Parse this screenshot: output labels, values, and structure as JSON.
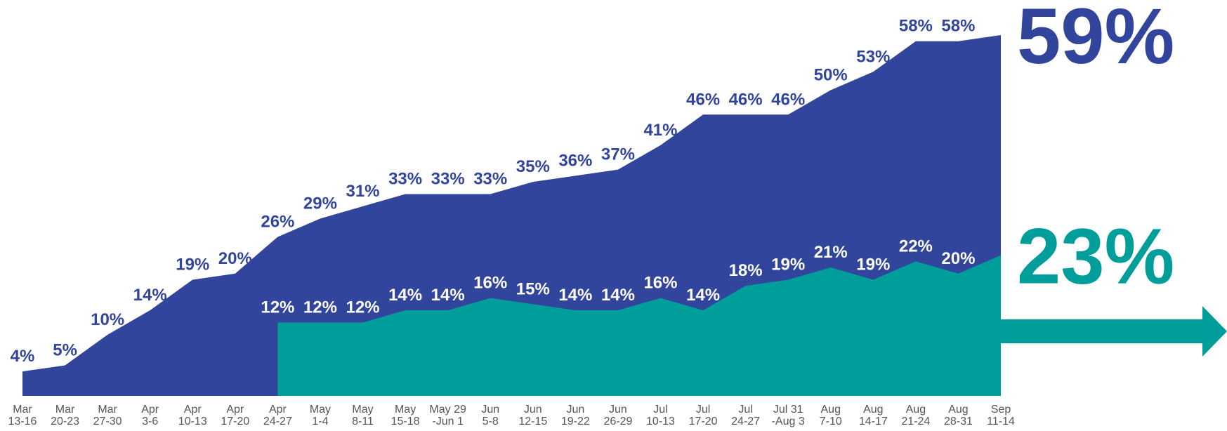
{
  "chart_data": {
    "type": "area",
    "categories": [
      "Mar\n13-16",
      "Mar\n20-23",
      "Mar\n27-30",
      "Apr\n3-6",
      "Apr\n10-13",
      "Apr\n17-20",
      "Apr\n24-27",
      "May\n1-4",
      "May\n8-11",
      "May\n15-18",
      "May 29\n-Jun 1",
      "Jun\n5-8",
      "Jun\n12-15",
      "Jun\n19-22",
      "Jun\n26-29",
      "Jul\n10-13",
      "Jul\n17-20",
      "Jul\n24-27",
      "Jul 31\n-Aug 3",
      "Aug\n7-10",
      "Aug\n14-17",
      "Aug\n21-24",
      "Aug\n28-31",
      "Sep\n11-14"
    ],
    "series": [
      {
        "color": "#32459c",
        "values": [
          4,
          5,
          10,
          14,
          19,
          20,
          26,
          29,
          31,
          33,
          33,
          33,
          35,
          36,
          37,
          41,
          46,
          46,
          46,
          50,
          53,
          58,
          58,
          59
        ],
        "value_labels": [
          "4%",
          "5%",
          "10%",
          "14%",
          "19%",
          "20%",
          "26%",
          "29%",
          "31%",
          "33%",
          "33%",
          "33%",
          "35%",
          "36%",
          "37%",
          "41%",
          "46%",
          "46%",
          "46%",
          "50%",
          "53%",
          "58%",
          "58%",
          "59%"
        ]
      },
      {
        "color": "#009e9a",
        "values": [
          null,
          null,
          null,
          null,
          null,
          null,
          12,
          12,
          12,
          14,
          14,
          16,
          15,
          14,
          14,
          16,
          14,
          18,
          19,
          21,
          19,
          22,
          20,
          23
        ],
        "value_labels": [
          null,
          null,
          null,
          null,
          null,
          null,
          "12%",
          "12%",
          "12%",
          "14%",
          "14%",
          "16%",
          "15%",
          "14%",
          "14%",
          "16%",
          "14%",
          "18%",
          "19%",
          "21%",
          "19%",
          "22%",
          "20%",
          "23%"
        ]
      }
    ]
  }
}
